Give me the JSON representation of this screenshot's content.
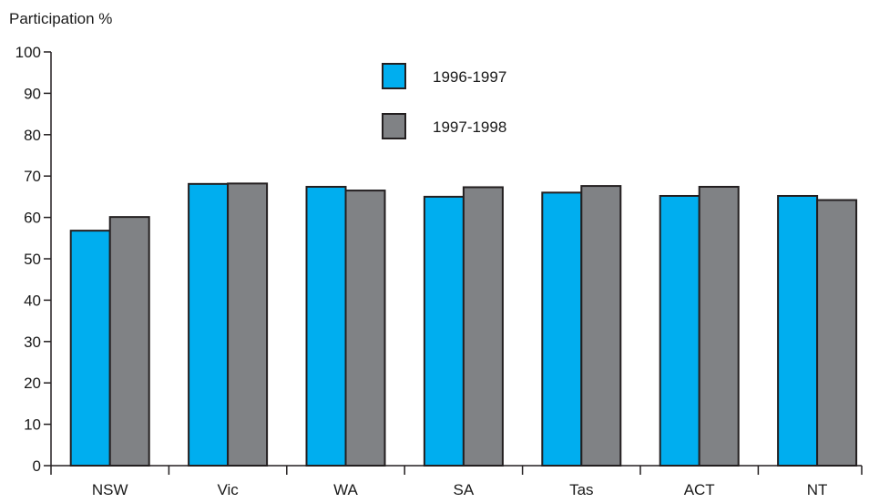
{
  "chart_data": {
    "type": "bar",
    "ylabel": "Participation %",
    "xlabel": "",
    "title": "",
    "categories": [
      "NSW",
      "Vic",
      "WA",
      "SA",
      "Tas",
      "ACT",
      "NT"
    ],
    "series": [
      {
        "name": "1996-1997",
        "color": "#00aeef",
        "values": [
          56.8,
          68.1,
          67.4,
          65.0,
          66.0,
          65.2,
          65.2
        ]
      },
      {
        "name": "1997-1998",
        "color": "#808285",
        "values": [
          60.1,
          68.2,
          66.5,
          67.3,
          67.6,
          67.4,
          64.2
        ]
      }
    ],
    "ylim": [
      0,
      100
    ],
    "yticks": [
      0,
      10,
      20,
      30,
      40,
      50,
      60,
      70,
      80,
      90,
      100
    ],
    "grid": false,
    "legend_position": "top-center"
  }
}
